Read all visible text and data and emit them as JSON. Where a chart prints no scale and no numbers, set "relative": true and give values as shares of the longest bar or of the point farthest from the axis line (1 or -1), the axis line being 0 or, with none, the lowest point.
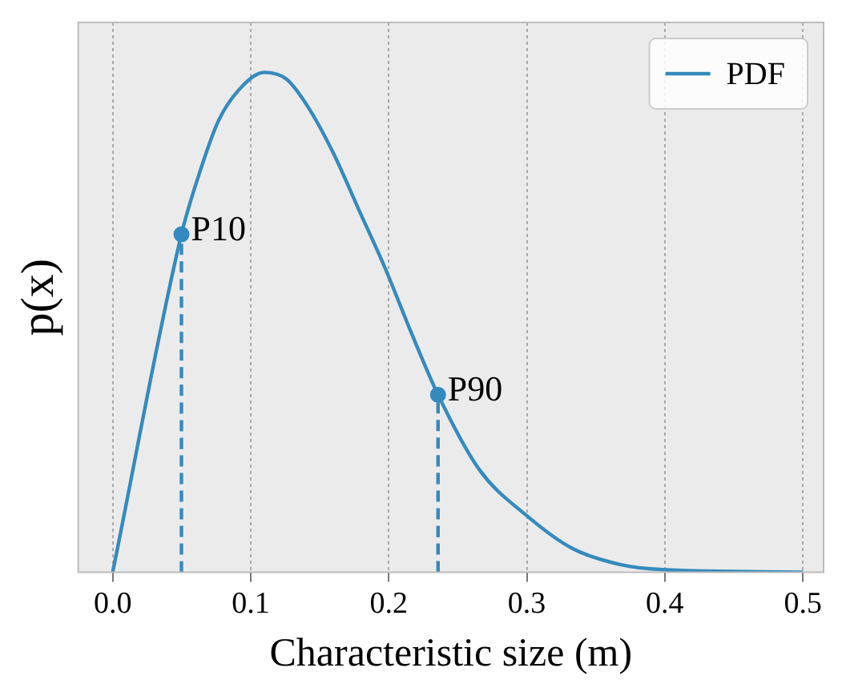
{
  "chart_data": {
    "type": "line",
    "xlabel": "Characteristic size (m)",
    "ylabel": "p(x)",
    "relative": true,
    "xlim": [
      -0.025,
      0.515
    ],
    "xticks": [
      {
        "value": 0,
        "label": "0.0"
      },
      {
        "value": 0.1,
        "label": "0.1"
      },
      {
        "value": 0.2,
        "label": "0.2"
      },
      {
        "value": 0.3,
        "label": "0.3"
      },
      {
        "value": 0.4,
        "label": "0.4"
      },
      {
        "value": 0.5,
        "label": "0.5"
      }
    ],
    "tick_labels": "x",
    "grid": "x",
    "legend": "top right",
    "series": [
      {
        "name": "PDF",
        "color": "#348abd",
        "marker": "none",
        "line_style": "solid",
        "x": [
          0,
          0.0498,
          0.0615,
          0.0766,
          0.0917,
          0.1098,
          0.1257,
          0.1408,
          0.1596,
          0.1785,
          0.1974,
          0.2162,
          0.2357,
          0.2654,
          0.3,
          0.333,
          0.367,
          0.399,
          0.5
        ],
        "values": [
          0,
          0.676,
          0.787,
          0.903,
          0.966,
          1,
          0.987,
          0.934,
          0.84,
          0.724,
          0.608,
          0.48,
          0.355,
          0.206,
          0.113,
          0.0475,
          0.0158,
          0.005,
          0
        ]
      },
      {
        "type": "line",
        "color": "#348abd",
        "marker": "none",
        "line_style": "dashed",
        "x": [
          0.0498,
          0.0498
        ],
        "values": [
          0,
          0.676
        ]
      },
      {
        "type": "line",
        "color": "#348abd",
        "marker": "none",
        "line_style": "dashed",
        "x": [
          0.2357,
          0.2357
        ],
        "values": [
          0,
          0.355
        ]
      },
      {
        "type": "scatter",
        "color": "#348abd",
        "marker": "circle",
        "x": [
          0.0498,
          0.2357
        ],
        "values": [
          0.676,
          0.355
        ]
      }
    ],
    "annotations": [
      {
        "text": "P10",
        "x": 0.0498,
        "y": 0.676
      },
      {
        "text": "P90",
        "x": 0.2357,
        "y": 0.355
      }
    ]
  }
}
